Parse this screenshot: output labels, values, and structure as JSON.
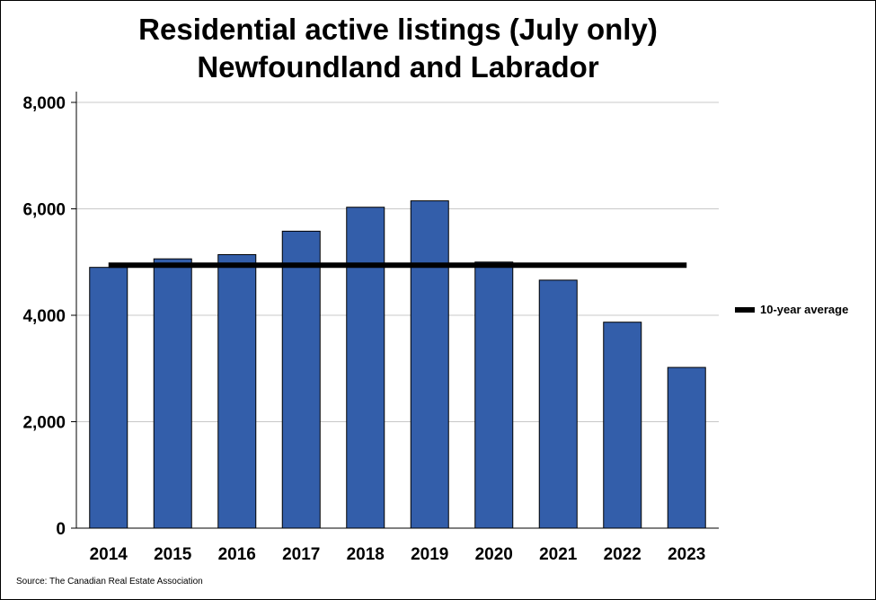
{
  "chart_data": {
    "type": "bar",
    "title": "Residential active listings (July only)",
    "subtitle": "Newfoundland and Labrador",
    "categories": [
      "2014",
      "2015",
      "2016",
      "2017",
      "2018",
      "2019",
      "2020",
      "2021",
      "2022",
      "2023"
    ],
    "values": [
      4900,
      5060,
      5140,
      5580,
      6030,
      6150,
      5000,
      4660,
      3870,
      3020
    ],
    "yticks": [
      0,
      2000,
      4000,
      6000,
      8000
    ],
    "ytick_labels": [
      "0",
      "2,000",
      "4,000",
      "6,000",
      "8,000"
    ],
    "ylim": [
      0,
      8000
    ],
    "average": {
      "name": "10-year average",
      "value": 4940
    },
    "legend_position": "right",
    "grid": true,
    "colors": {
      "bar": "#335eaa",
      "bar_stroke": "#000000",
      "average": "#000000",
      "grid": "#c8c8c8"
    },
    "source": "Source: The Canadian Real Estate Association"
  }
}
